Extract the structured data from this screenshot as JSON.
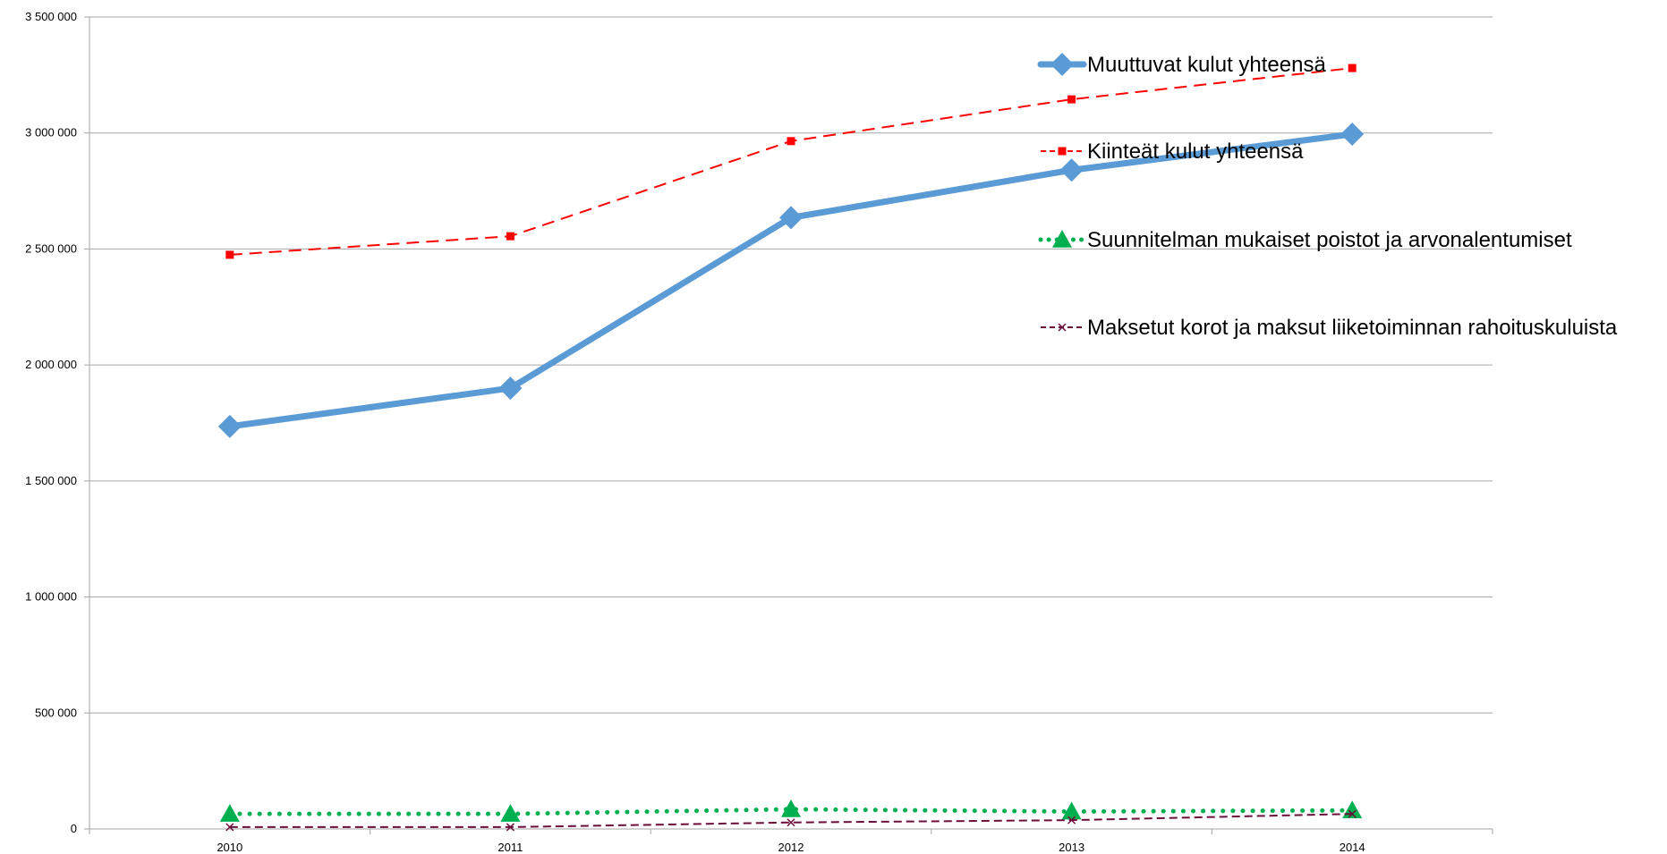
{
  "chart_data": {
    "type": "line",
    "title": "",
    "xlabel": "",
    "ylabel": "",
    "categories": [
      "2010",
      "2011",
      "2012",
      "2013",
      "2014"
    ],
    "ylim": [
      0,
      3500000
    ],
    "y_ticks": [
      0,
      500000,
      1000000,
      1500000,
      2000000,
      2500000,
      3000000,
      3500000
    ],
    "y_tick_labels": [
      "0",
      "500 000",
      "1 000 000",
      "1 500 000",
      "2 000 000",
      "2 500 000",
      "3 000 000",
      "3 500 000"
    ],
    "grid": "horizontal",
    "legend_position": "right",
    "series": [
      {
        "name": "Muuttuvat kulut yhteensä",
        "values": [
          1735000,
          1900000,
          2635000,
          2840000,
          2995000
        ],
        "color": "#5B9BD5",
        "line_style": "solid",
        "marker": "diamond"
      },
      {
        "name": "Kiinteät kulut yhteensä",
        "values": [
          2475000,
          2555000,
          2965000,
          3145000,
          3280000
        ],
        "color": "#FF0000",
        "line_style": "dashed",
        "marker": "square"
      },
      {
        "name": "Suunnitelman mukaiset poistot ja arvonalentumiset",
        "values": [
          65000,
          65000,
          85000,
          75000,
          80000
        ],
        "color": "#00B050",
        "line_style": "dotted",
        "marker": "triangle"
      },
      {
        "name": "Maksetut korot ja maksut liiketoiminnan rahoituskuluista",
        "values": [
          8000,
          8000,
          28000,
          38000,
          65000
        ],
        "color": "#6B0F3A",
        "line_style": "dashed",
        "marker": "x"
      }
    ]
  }
}
